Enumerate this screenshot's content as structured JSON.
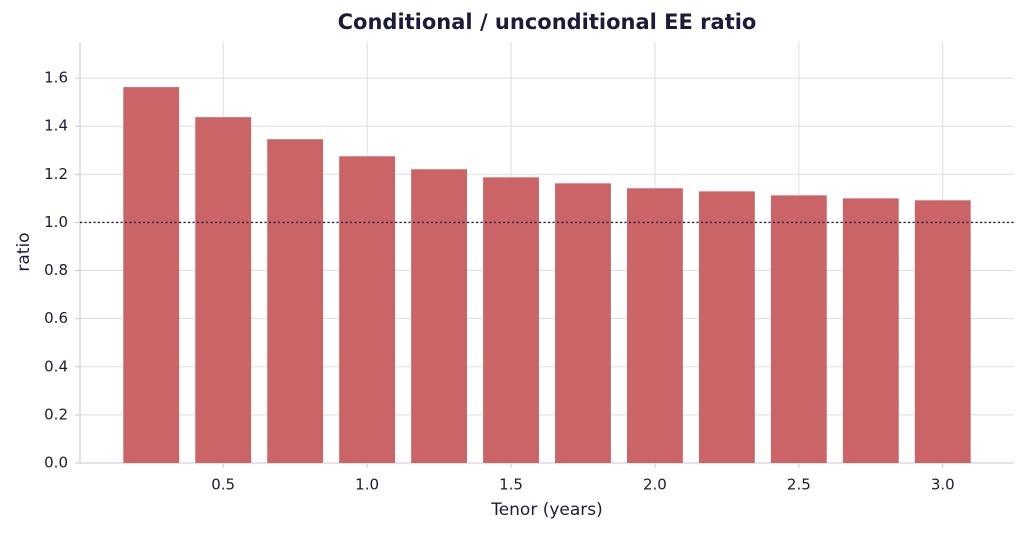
{
  "chart_data": {
    "type": "bar",
    "title": "Conditional / unconditional EE ratio",
    "x_label": "Tenor (years)",
    "y_label": "ratio",
    "x": [
      0.25,
      0.5,
      0.75,
      1.0,
      1.25,
      1.5,
      1.75,
      2.0,
      2.25,
      2.5,
      2.75,
      3.0
    ],
    "values": [
      1.5625,
      1.4375,
      1.346,
      1.275,
      1.221,
      1.1875,
      1.1625,
      1.142,
      1.129,
      1.1125,
      1.1,
      1.092
    ],
    "color": "#c95f62",
    "reference_line": 1,
    "xlim": [
      0.0025,
      3.2475
    ],
    "xticks": [
      0.5,
      {
        "value": 1,
        "label": "1.0"
      },
      1.5,
      {
        "value": 2,
        "label": "2.0"
      },
      2.5,
      {
        "value": 3,
        "label": "3.0"
      }
    ],
    "ylim": [
      0,
      1.75
    ],
    "yticks": [
      {
        "value": 0,
        "label": "0.0"
      },
      0.2,
      0.4,
      0.6,
      0.8,
      {
        "value": 1,
        "label": "1.0"
      },
      1.2,
      1.4,
      1.6
    ],
    "grid": true
  }
}
